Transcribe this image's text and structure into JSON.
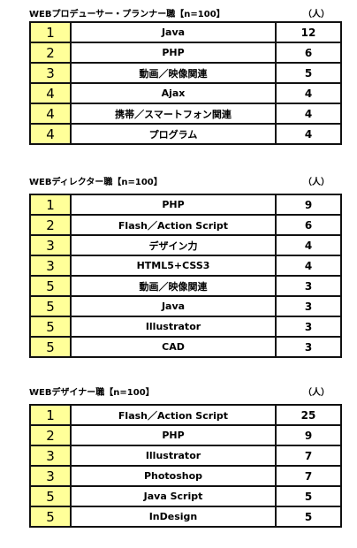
{
  "sections": [
    {
      "title": "WEBプロデューサー・プランナー職【n=100】",
      "unit": "（人）",
      "rows": [
        {
          "rank": "1",
          "skill": "Java",
          "count": "12"
        },
        {
          "rank": "2",
          "skill": "PHP",
          "count": "6"
        },
        {
          "rank": "3",
          "skill": "動画／映像関連",
          "count": "5"
        },
        {
          "rank": "4",
          "skill": "Ajax",
          "count": "4"
        },
        {
          "rank": "4",
          "skill": "携帯／スマートフォン関連",
          "count": "4"
        },
        {
          "rank": "4",
          "skill": "プログラム",
          "count": "4"
        }
      ]
    },
    {
      "title": "WEBディレクター職【n=100】",
      "unit": "（人）",
      "rows": [
        {
          "rank": "1",
          "skill": "PHP",
          "count": "9"
        },
        {
          "rank": "2",
          "skill": "Flash／Action Script",
          "count": "6"
        },
        {
          "rank": "3",
          "skill": "デザイン力",
          "count": "4"
        },
        {
          "rank": "3",
          "skill": "HTML5+CSS3",
          "count": "4"
        },
        {
          "rank": "5",
          "skill": "動画／映像関連",
          "count": "3"
        },
        {
          "rank": "5",
          "skill": "Java",
          "count": "3"
        },
        {
          "rank": "5",
          "skill": "Illustrator",
          "count": "3"
        },
        {
          "rank": "5",
          "skill": "CAD",
          "count": "3"
        }
      ]
    },
    {
      "title": "WEBデザイナー職【n=100】",
      "unit": "（人）",
      "rows": [
        {
          "rank": "1",
          "skill": "Flash／Action Script",
          "count": "25"
        },
        {
          "rank": "2",
          "skill": "PHP",
          "count": "9"
        },
        {
          "rank": "3",
          "skill": "Illustrator",
          "count": "7"
        },
        {
          "rank": "3",
          "skill": "Photoshop",
          "count": "7"
        },
        {
          "rank": "5",
          "skill": "Java Script",
          "count": "5"
        },
        {
          "rank": "5",
          "skill": "InDesign",
          "count": "5"
        }
      ]
    }
  ]
}
